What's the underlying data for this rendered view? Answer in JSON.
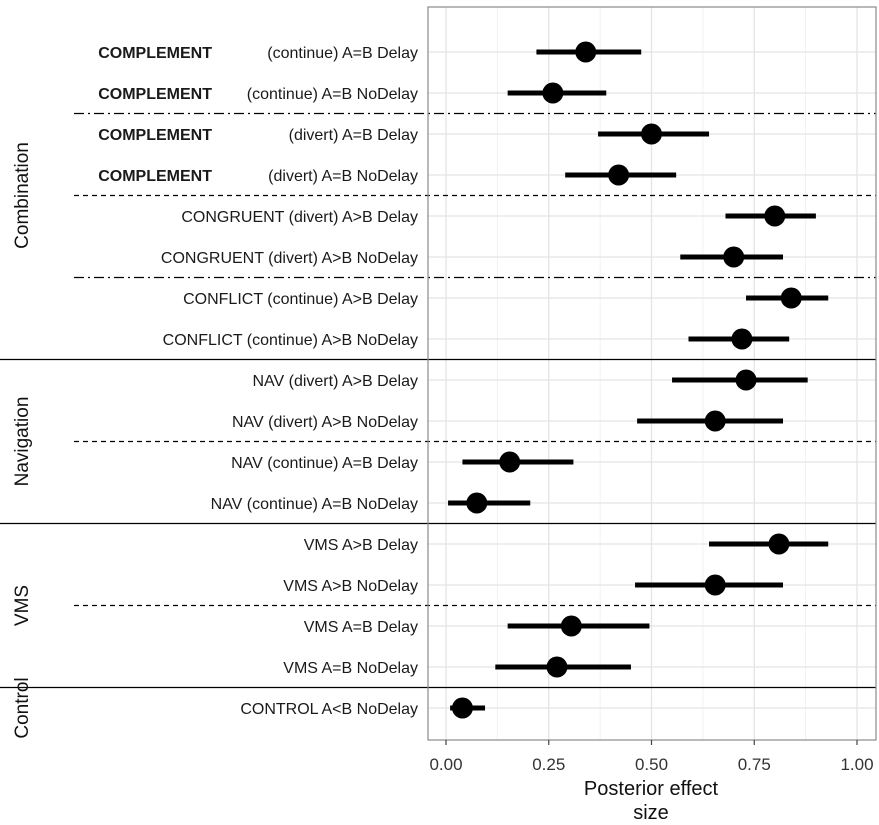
{
  "chart_data": {
    "type": "forest",
    "xlabel": [
      "Posterior effect",
      "size"
    ],
    "xlim": [
      -0.05,
      1.05
    ],
    "xticks": [
      0,
      0.25,
      0.5,
      0.75,
      1.0
    ],
    "xtick_labels": [
      "0.00",
      "0.25",
      "0.50",
      "0.75",
      "1.00"
    ],
    "grid": true,
    "groups": [
      {
        "name": "Combination",
        "rows": [
          {
            "prefix": "COMPLEMENT",
            "label": "(continue) A=B Delay",
            "estimate": 0.34,
            "lower": 0.22,
            "upper": 0.475
          },
          {
            "prefix": "COMPLEMENT",
            "label": "(continue) A=B NoDelay",
            "estimate": 0.26,
            "lower": 0.15,
            "upper": 0.39
          },
          {
            "prefix": "COMPLEMENT",
            "label": "(divert) A=B Delay",
            "estimate": 0.5,
            "lower": 0.37,
            "upper": 0.64
          },
          {
            "prefix": "COMPLEMENT",
            "label": "(divert) A=B NoDelay",
            "estimate": 0.42,
            "lower": 0.29,
            "upper": 0.56
          },
          {
            "prefix": "",
            "label": "CONGRUENT (divert) A>B Delay",
            "estimate": 0.8,
            "lower": 0.68,
            "upper": 0.9
          },
          {
            "prefix": "",
            "label": "CONGRUENT (divert) A>B NoDelay",
            "estimate": 0.7,
            "lower": 0.57,
            "upper": 0.82
          },
          {
            "prefix": "",
            "label": "CONFLICT (continue) A>B Delay",
            "estimate": 0.84,
            "lower": 0.73,
            "upper": 0.93
          },
          {
            "prefix": "",
            "label": "CONFLICT (continue) A>B NoDelay",
            "estimate": 0.72,
            "lower": 0.59,
            "upper": 0.835
          }
        ]
      },
      {
        "name": "Navigation",
        "rows": [
          {
            "prefix": "",
            "label": "NAV (divert) A>B Delay",
            "estimate": 0.73,
            "lower": 0.55,
            "upper": 0.88
          },
          {
            "prefix": "",
            "label": "NAV (divert) A>B NoDelay",
            "estimate": 0.655,
            "lower": 0.465,
            "upper": 0.82
          },
          {
            "prefix": "",
            "label": "NAV (continue) A=B Delay",
            "estimate": 0.155,
            "lower": 0.04,
            "upper": 0.31
          },
          {
            "prefix": "",
            "label": "NAV (continue) A=B NoDelay",
            "estimate": 0.075,
            "lower": 0.005,
            "upper": 0.205
          }
        ]
      },
      {
        "name": "VMS",
        "rows": [
          {
            "prefix": "",
            "label": "VMS A>B Delay",
            "estimate": 0.81,
            "lower": 0.64,
            "upper": 0.93
          },
          {
            "prefix": "",
            "label": "VMS A>B NoDelay",
            "estimate": 0.655,
            "lower": 0.46,
            "upper": 0.82
          },
          {
            "prefix": "",
            "label": "VMS A=B Delay",
            "estimate": 0.305,
            "lower": 0.15,
            "upper": 0.495
          },
          {
            "prefix": "",
            "label": "VMS A=B NoDelay",
            "estimate": 0.27,
            "lower": 0.12,
            "upper": 0.45
          }
        ]
      },
      {
        "name": "Control",
        "rows": [
          {
            "prefix": "",
            "label": "CONTROL A<B NoDelay",
            "estimate": 0.04,
            "lower": 0.01,
            "upper": 0.095
          }
        ]
      }
    ],
    "separators": [
      {
        "after_row": 1,
        "style": "dashdot"
      },
      {
        "after_row": 3,
        "style": "dashed"
      },
      {
        "after_row": 5,
        "style": "dashdot"
      },
      {
        "after_row": 7,
        "style": "solid"
      },
      {
        "after_row": 9,
        "style": "dashed"
      },
      {
        "after_row": 11,
        "style": "solid"
      },
      {
        "after_row": 13,
        "style": "dashed"
      },
      {
        "after_row": 15,
        "style": "solid"
      }
    ],
    "colors": {
      "point": "#000000",
      "interval": "#000000",
      "grid": "#e4e4e4",
      "panel_border": "#8a8a8a"
    }
  }
}
